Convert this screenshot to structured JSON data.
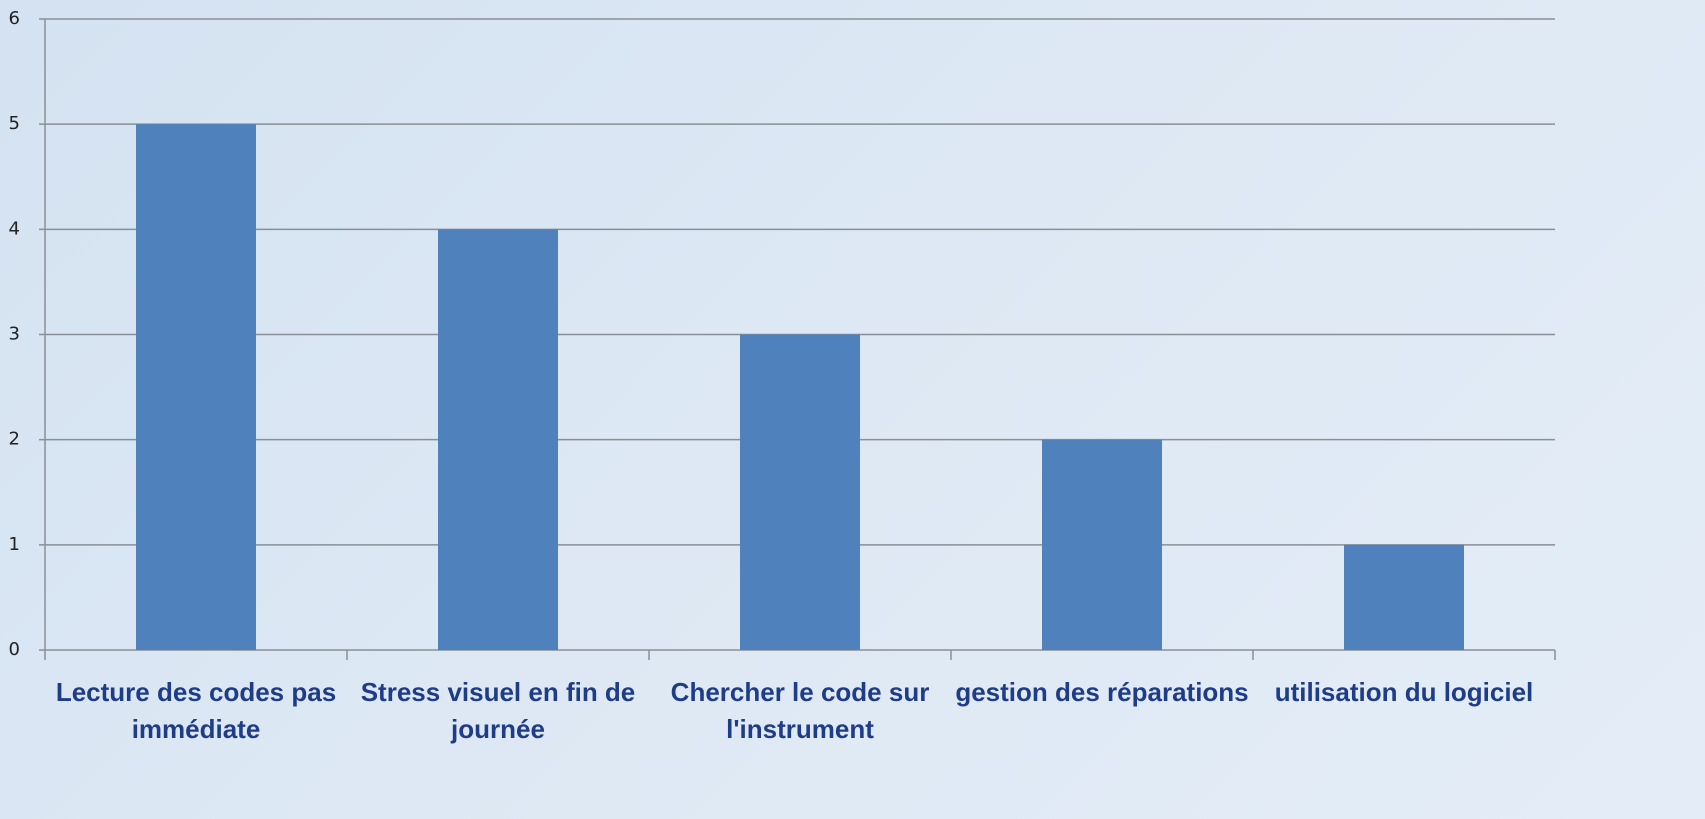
{
  "chart_data": {
    "type": "bar",
    "categories": [
      "Lecture des codes pas immédiate",
      "Stress visuel en fin de journée",
      "Chercher le code sur l'instrument",
      "gestion des réparations",
      "utilisation du logiciel"
    ],
    "values": [
      5,
      4,
      3,
      2,
      1
    ],
    "color": "#4f81bd",
    "ylim": [
      0,
      6
    ],
    "yticks": [
      0,
      1,
      2,
      3,
      4,
      5,
      6
    ],
    "grid": true
  }
}
